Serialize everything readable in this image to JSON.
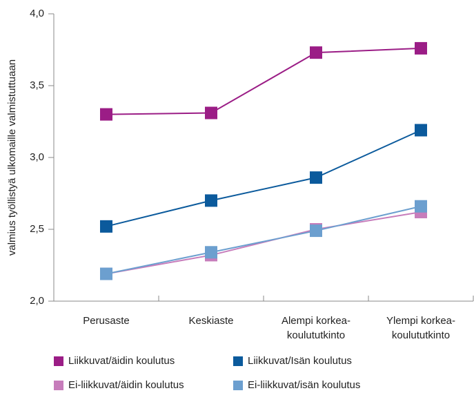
{
  "chart_data": {
    "type": "line",
    "y_label": "valmius työllistyä ulkomaille valmistuttuaan",
    "categories": [
      "Perusaste",
      "Keskiaste",
      "Alempi korkea-\nkoulututkinto",
      "Ylempi korkea-\nkoulututkinto"
    ],
    "ylim": [
      2,
      4
    ],
    "yticks": [
      {
        "value": 2,
        "label": "2,0"
      },
      {
        "value": 2.5,
        "label": "2,5"
      },
      {
        "value": 3,
        "label": "3,0"
      },
      {
        "value": 3.5,
        "label": "3,5"
      },
      {
        "value": 4,
        "label": "4,0"
      }
    ],
    "grid": false,
    "legend": "bottom",
    "series": [
      {
        "name": "Liikkuvat/äidin koulutus",
        "color": "#9b1d86",
        "values": [
          3.3,
          3.31,
          3.73,
          3.76
        ]
      },
      {
        "name": "Liikkuvat/Isän koulutus",
        "color": "#0b5a9c",
        "values": [
          2.52,
          2.7,
          2.86,
          3.19
        ]
      },
      {
        "name": "Ei-liikkuvat/äidin koulutus",
        "color": "#c77dbb",
        "values": [
          2.19,
          2.32,
          2.5,
          2.62
        ]
      },
      {
        "name": "Ei-liikkuvat/isän koulutus",
        "color": "#6c9fcf",
        "values": [
          2.19,
          2.34,
          2.49,
          2.66
        ]
      }
    ]
  }
}
